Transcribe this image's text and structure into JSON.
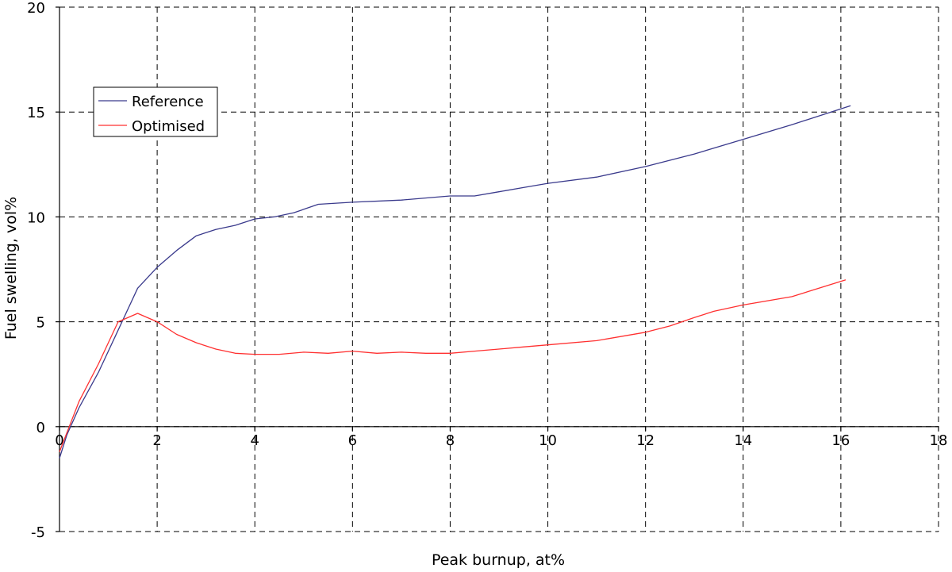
{
  "chart_data": {
    "type": "line",
    "xlabel": "Peak burnup, at%",
    "ylabel": "Fuel swelling, vol%",
    "xlim": [
      0,
      18
    ],
    "ylim": [
      -5,
      20
    ],
    "xticks": [
      0,
      2,
      4,
      6,
      8,
      10,
      12,
      14,
      16,
      18
    ],
    "yticks": [
      -5,
      0,
      5,
      10,
      15,
      20
    ],
    "grid": "dashed",
    "legend_position": "top-left",
    "series": [
      {
        "name": "Reference",
        "color": "#3a3a8c",
        "x": [
          0.0,
          0.15,
          0.4,
          0.8,
          1.2,
          1.6,
          2.0,
          2.4,
          2.8,
          3.2,
          3.6,
          4.0,
          4.4,
          4.8,
          5.3,
          6.0,
          7.0,
          8.0,
          8.5,
          9.0,
          9.5,
          10.0,
          11.0,
          12.0,
          13.0,
          14.0,
          15.0,
          16.2
        ],
        "y": [
          -1.5,
          -0.4,
          0.9,
          2.6,
          4.6,
          6.6,
          7.6,
          8.4,
          9.1,
          9.4,
          9.6,
          9.9,
          10.0,
          10.2,
          10.6,
          10.7,
          10.8,
          11.0,
          11.0,
          11.2,
          11.4,
          11.6,
          11.9,
          12.4,
          13.0,
          13.7,
          14.4,
          15.3
        ]
      },
      {
        "name": "Optimised",
        "color": "#ff3030",
        "x": [
          0.0,
          0.15,
          0.4,
          0.8,
          1.2,
          1.6,
          2.0,
          2.4,
          2.8,
          3.2,
          3.6,
          4.0,
          4.5,
          5.0,
          5.5,
          6.0,
          6.5,
          7.0,
          7.5,
          8.0,
          8.5,
          9.0,
          9.5,
          10.0,
          11.0,
          12.0,
          12.5,
          13.0,
          13.4,
          14.0,
          15.0,
          16.1
        ],
        "y": [
          -1.2,
          -0.3,
          1.2,
          3.0,
          5.0,
          5.4,
          5.0,
          4.4,
          4.0,
          3.7,
          3.5,
          3.45,
          3.45,
          3.55,
          3.5,
          3.6,
          3.5,
          3.55,
          3.5,
          3.5,
          3.6,
          3.7,
          3.8,
          3.9,
          4.1,
          4.5,
          4.8,
          5.2,
          5.5,
          5.8,
          6.2,
          7.0
        ]
      }
    ]
  }
}
